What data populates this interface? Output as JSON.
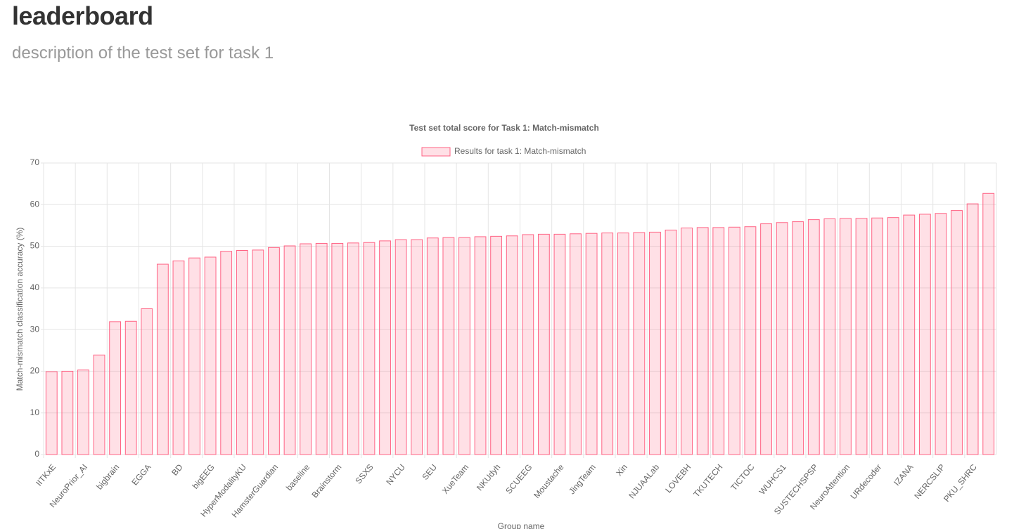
{
  "header": {
    "title": "leaderboard",
    "description": "description of the test set for task 1"
  },
  "chart_data": {
    "type": "bar",
    "title": "Test set total score for Task 1: Match-mismatch",
    "xlabel": "Group name",
    "ylabel": "Match-mismatch classification accuracy (%)",
    "categories": [
      "IITKxE",
      null,
      "NeuroPrior_AI",
      null,
      "bigbrain",
      null,
      "EGGA",
      null,
      "BD",
      null,
      "bigEEG",
      null,
      "HyperModalityKU",
      null,
      "HamsterGuardian",
      null,
      "baseline",
      null,
      "Brainstorm",
      null,
      "SSXS",
      null,
      "NYCU",
      null,
      "SEU",
      null,
      "XueTeam",
      null,
      "NKUdyh",
      null,
      "SCUEEG",
      null,
      "Moustache",
      null,
      "JingTeam",
      null,
      "Xin",
      null,
      "NJUAALab",
      null,
      "LOVEBH",
      null,
      "TKUTECH",
      null,
      "TICTOC",
      null,
      "WUHCS1",
      null,
      "SUSTECHSPSP",
      null,
      "NeuroAttention",
      null,
      "URdecoder",
      null,
      "IZANA",
      null,
      "NERCSLIP",
      null,
      "PKU_SHRC",
      null
    ],
    "series": [
      {
        "name": "Results for task 1: Match-mismatch",
        "color": "#ff6384",
        "values": [
          19.9,
          20.0,
          20.3,
          23.9,
          31.9,
          32.0,
          35.0,
          45.7,
          46.5,
          47.2,
          47.4,
          48.8,
          49.0,
          49.1,
          49.7,
          50.1,
          50.6,
          50.7,
          50.7,
          50.8,
          50.9,
          51.3,
          51.6,
          51.6,
          52.0,
          52.1,
          52.1,
          52.3,
          52.4,
          52.5,
          52.8,
          52.9,
          52.9,
          53.0,
          53.1,
          53.2,
          53.2,
          53.3,
          53.4,
          53.9,
          54.4,
          54.5,
          54.5,
          54.6,
          54.7,
          55.4,
          55.7,
          55.9,
          56.4,
          56.6,
          56.7,
          56.7,
          56.8,
          56.9,
          57.5,
          57.7,
          57.9,
          58.6,
          60.2,
          62.7
        ]
      }
    ],
    "ylim": [
      0,
      70
    ],
    "yticks": [
      0,
      10,
      20,
      30,
      40,
      50,
      60,
      70
    ],
    "grid": true
  }
}
